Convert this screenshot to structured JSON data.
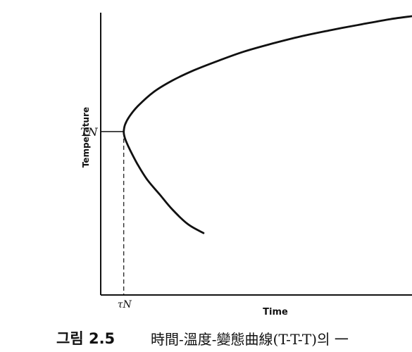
{
  "chart_data": {
    "type": "line",
    "title": "",
    "xlabel": "Time",
    "ylabel": "Temperature",
    "xlim": [
      0,
      1
    ],
    "ylim": [
      0,
      1
    ],
    "grid": false,
    "legend": "none",
    "x_marker": {
      "label": "τN",
      "value": 0.074
    },
    "y_marker": {
      "label": "TN",
      "value": 0.554
    },
    "series": [
      {
        "x": [
          0.33,
          0.28,
          0.23,
          0.19,
          0.15,
          0.12,
          0.095,
          0.082,
          0.076,
          0.074,
          0.078,
          0.092,
          0.12,
          0.17,
          0.23,
          0.3,
          0.38,
          0.46,
          0.55,
          0.64,
          0.74,
          0.84,
          0.93,
          1.0
        ],
        "y": [
          0.21,
          0.24,
          0.29,
          0.34,
          0.39,
          0.44,
          0.49,
          0.52,
          0.538,
          0.554,
          0.577,
          0.605,
          0.641,
          0.688,
          0.727,
          0.762,
          0.795,
          0.825,
          0.852,
          0.876,
          0.898,
          0.918,
          0.935,
          0.945
        ]
      }
    ]
  },
  "caption": {
    "prefix": "그림 2.5",
    "text": "時間-溫度-變態曲線(T-T-T)의 一"
  },
  "colors": {
    "ink": "#111111",
    "background": "#ffffff"
  }
}
